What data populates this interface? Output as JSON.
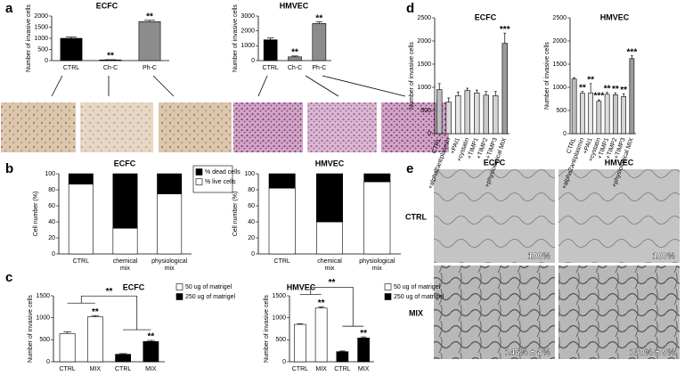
{
  "chart_data": [
    {
      "type": "bar",
      "title": "ECFC",
      "y_label": "Number of invasive cells",
      "categories": [
        "CTRL",
        "Ch-C",
        "Ph-C"
      ],
      "values": [
        1000,
        30,
        1750
      ],
      "errors": [
        60,
        10,
        60
      ],
      "colors": [
        "#000000",
        "#000000",
        "#8c8c8c"
      ],
      "stars": [
        null,
        "**",
        "**"
      ],
      "ylim": [
        0,
        2000
      ],
      "yticks": [
        0,
        500,
        1000,
        1500,
        2000
      ]
    },
    {
      "type": "bar",
      "title": "HMVEC",
      "y_label": "Number of invasive cells",
      "categories": [
        "CTRL",
        "Ch-C",
        "Ph-C"
      ],
      "values": [
        1400,
        250,
        2500
      ],
      "errors": [
        120,
        60,
        100
      ],
      "colors": [
        "#000000",
        "#8c8c8c",
        "#8c8c8c"
      ],
      "stars": [
        null,
        "**",
        "**"
      ],
      "ylim": [
        0,
        3000
      ],
      "yticks": [
        0,
        1000,
        2000,
        3000
      ]
    },
    {
      "type": "stacked_bar",
      "title": "ECFC",
      "y_label": "Cell number (%)",
      "categories": [
        "CTRL",
        "chemical mix",
        "physiological mix"
      ],
      "series": [
        {
          "name": "% live cells",
          "color": "#ffffff",
          "values": [
            87,
            32,
            75
          ]
        },
        {
          "name": "% dead cells",
          "color": "#000000",
          "values": [
            13,
            68,
            25
          ]
        }
      ],
      "ylim": [
        0,
        100
      ],
      "yticks": [
        0,
        20,
        40,
        60,
        80,
        100
      ],
      "legend": "top-right"
    },
    {
      "type": "stacked_bar",
      "title": "HMVEC",
      "y_label": "Cell number (%)",
      "categories": [
        "CTRL",
        "chemical mix",
        "physiological mix"
      ],
      "series": [
        {
          "name": "% live cells",
          "color": "#ffffff",
          "values": [
            82,
            40,
            90
          ]
        },
        {
          "name": "% dead cells",
          "color": "#000000",
          "values": [
            18,
            60,
            10
          ]
        }
      ],
      "ylim": [
        0,
        100
      ],
      "yticks": [
        0,
        20,
        40,
        60,
        80,
        100
      ]
    },
    {
      "type": "grouped_bar",
      "title": "ECFC",
      "y_label": "Number of invasive cells",
      "categories": [
        "CTRL",
        "MIX",
        "CTRL",
        "MIX"
      ],
      "bracket_label": "**",
      "series": [
        {
          "name": "50 ug of matrigel",
          "color": "#ffffff",
          "values": [
            640,
            1020,
            null,
            null
          ],
          "errors": [
            40,
            30,
            null,
            null
          ],
          "stars": [
            null,
            "**",
            null,
            null
          ]
        },
        {
          "name": "250 ug of matrigel",
          "color": "#000000",
          "values": [
            null,
            null,
            170,
            460
          ],
          "errors": [
            null,
            null,
            15,
            25
          ],
          "stars": [
            null,
            null,
            null,
            "**"
          ]
        }
      ],
      "ylim": [
        0,
        1500
      ],
      "yticks": [
        0,
        500,
        1000,
        1500
      ],
      "legend": "top-right"
    },
    {
      "type": "grouped_bar",
      "title": "HMVEC",
      "y_label": "Number of invasive cells",
      "categories": [
        "CTRL",
        "MIX",
        "CTRL",
        "MIX"
      ],
      "bracket_label": "**",
      "series": [
        {
          "name": "50 ug of matrigel",
          "color": "#ffffff",
          "values": [
            850,
            1220,
            null,
            null
          ],
          "errors": [
            15,
            30,
            null,
            null
          ],
          "stars": [
            null,
            "**",
            null,
            null
          ]
        },
        {
          "name": "250 ug of matrigel",
          "color": "#000000",
          "values": [
            null,
            null,
            230,
            540
          ],
          "errors": [
            null,
            null,
            15,
            25
          ],
          "stars": [
            null,
            null,
            null,
            "**"
          ]
        }
      ],
      "ylim": [
        0,
        1500
      ],
      "yticks": [
        0,
        500,
        1000,
        1500
      ],
      "legend": "top-right"
    },
    {
      "type": "bar",
      "title": "ECFC",
      "y_label": "Number of invasive cells",
      "categories": [
        "CTRL",
        "+alpha2antiplasmin",
        "+PAI1",
        "+cystatin",
        "+TIMP1",
        "+TIMP2",
        "+TIMP3",
        "+physiological MIX"
      ],
      "values": [
        950,
        680,
        820,
        930,
        880,
        830,
        820,
        1950
      ],
      "errors": [
        130,
        90,
        80,
        50,
        60,
        80,
        90,
        220
      ],
      "colors": [
        "#bdbdbd",
        "#d8d8d8",
        "#e6e6e6",
        "#cfcfcf",
        "#dcdcdc",
        "#c8c8c8",
        "#d4d4d4",
        "#9a9a9a"
      ],
      "stars": [
        null,
        null,
        null,
        null,
        null,
        null,
        null,
        "***"
      ],
      "ylim": [
        0,
        2500
      ],
      "yticks": [
        0,
        500,
        1000,
        1500,
        2000,
        2500
      ]
    },
    {
      "type": "bar",
      "title": "HMVEC",
      "y_label": "Number of invasive cells",
      "categories": [
        "CTRL",
        "+alpha2antiplasmin",
        "+PAI1",
        "+cystatin",
        "+TIMP1",
        "+TIMP2",
        "+TIMP3",
        "+physiological MIX"
      ],
      "values": [
        1180,
        870,
        880,
        700,
        850,
        840,
        800,
        1620
      ],
      "errors": [
        30,
        40,
        200,
        30,
        40,
        40,
        60,
        60
      ],
      "colors": [
        "#bdbdbd",
        "#d8d8d8",
        "#e6e6e6",
        "#cfcfcf",
        "#dcdcdc",
        "#c8c8c8",
        "#d4d4d4",
        "#9a9a9a"
      ],
      "stars": [
        null,
        "**",
        "**",
        "***",
        "**",
        "**",
        "**",
        "***"
      ],
      "ylim": [
        0,
        2500
      ],
      "yticks": [
        0,
        500,
        1000,
        1500,
        2000,
        2500
      ]
    }
  ],
  "panels": [
    "a",
    "b",
    "c",
    "d",
    "e"
  ],
  "images": {
    "columns": [
      "ECFC",
      "HMVEC"
    ],
    "rows": [
      "CTRL",
      "MIX"
    ],
    "labels": [
      "100%",
      "100%",
      "146% ± 8%",
      "170% ± 9%"
    ]
  }
}
